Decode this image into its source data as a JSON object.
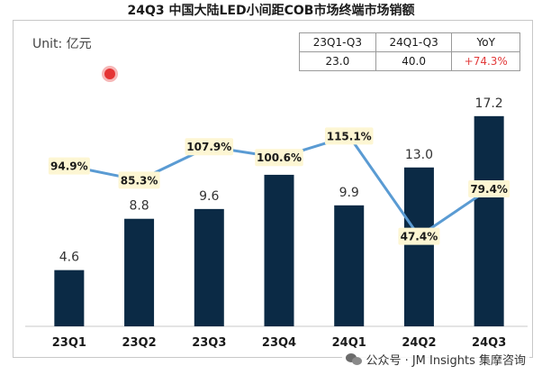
{
  "title": "24Q3 中国大陆LED小间距COB市场终端市场销额",
  "unit": "Unit: 亿元",
  "summary_table": {
    "headers": [
      "23Q1-Q3",
      "24Q1-Q3",
      "YoY"
    ],
    "values": [
      "23.0",
      "40.0",
      "+74.3%"
    ],
    "up_color": "#e23b3b"
  },
  "footer": "公众号 · JM Insights 集摩咨询",
  "chart_data": {
    "type": "bar",
    "categories": [
      "23Q1",
      "23Q2",
      "23Q3",
      "23Q4",
      "24Q1",
      "24Q2",
      "24Q3"
    ],
    "series": [
      {
        "values": [
          4.6,
          8.8,
          9.6,
          12.4,
          9.9,
          13.0,
          17.2
        ],
        "labels": [
          "4.6",
          "8.8",
          "9.6",
          "",
          "9.9",
          "13.0",
          "17.2"
        ],
        "color": "#0b2a45"
      },
      {
        "type": "line",
        "values": [
          94.9,
          85.3,
          107.9,
          100.6,
          115.1,
          47.4,
          79.4
        ],
        "labels": [
          "94.9%",
          "85.3%",
          "107.9%",
          "100.6%",
          "115.1%",
          "47.4%",
          "79.4%"
        ],
        "color": "#5a9bd3",
        "label_bg": "#fdf6d3"
      }
    ],
    "ylim": [
      0,
      18
    ],
    "ylim_line": [
      0,
      140
    ],
    "grid": false
  }
}
